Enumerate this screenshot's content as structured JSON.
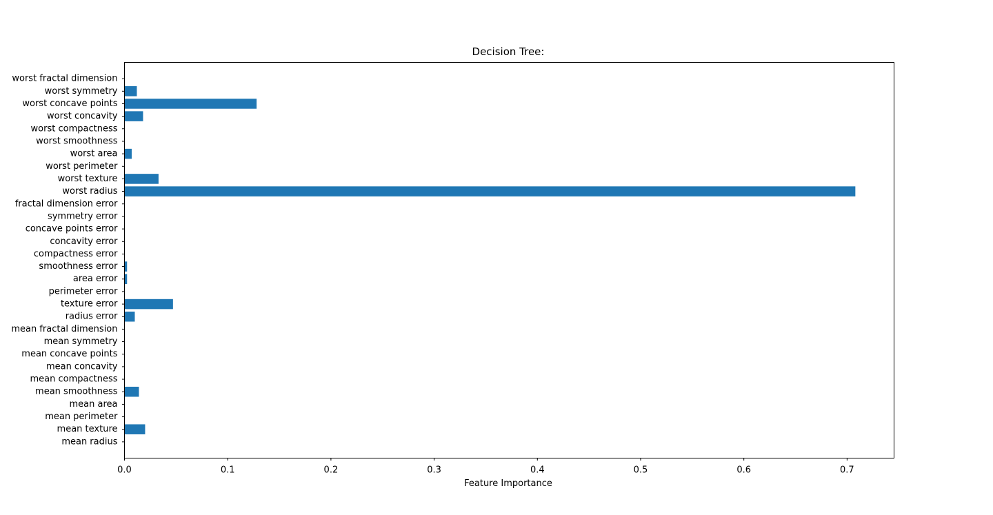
{
  "chart_data": {
    "type": "bar",
    "orientation": "horizontal",
    "title": "Decision Tree:",
    "xlabel": "Feature Importance",
    "ylabel": "",
    "xlim": [
      0,
      0.7455
    ],
    "xticks": [
      0.0,
      0.1,
      0.2,
      0.3,
      0.4,
      0.5,
      0.6,
      0.7
    ],
    "xtick_labels": [
      "0.0",
      "0.1",
      "0.2",
      "0.3",
      "0.4",
      "0.5",
      "0.6",
      "0.7"
    ],
    "grid": false,
    "bar_color": "#1f77b4",
    "categories": [
      "mean radius",
      "mean texture",
      "mean perimeter",
      "mean area",
      "mean smoothness",
      "mean compactness",
      "mean concavity",
      "mean concave points",
      "mean symmetry",
      "mean fractal dimension",
      "radius error",
      "texture error",
      "perimeter error",
      "area error",
      "smoothness error",
      "compactness error",
      "concavity error",
      "concave points error",
      "symmetry error",
      "fractal dimension error",
      "worst radius",
      "worst texture",
      "worst perimeter",
      "worst area",
      "worst smoothness",
      "worst compactness",
      "worst concavity",
      "worst concave points",
      "worst symmetry",
      "worst fractal dimension"
    ],
    "values": [
      0.0,
      0.02,
      0.0,
      0.0,
      0.014,
      0.0,
      0.0,
      0.0,
      0.0,
      0.0,
      0.01,
      0.047,
      0.0,
      0.0025,
      0.0025,
      0.0,
      0.0,
      0.0,
      0.0,
      0.0,
      0.708,
      0.033,
      0.0,
      0.007,
      0.0,
      0.0,
      0.018,
      0.128,
      0.012,
      0.0
    ]
  }
}
